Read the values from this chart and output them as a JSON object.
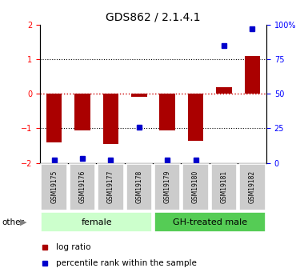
{
  "title": "GDS862 / 2.1.4.1",
  "samples": [
    "GSM19175",
    "GSM19176",
    "GSM19177",
    "GSM19178",
    "GSM19179",
    "GSM19180",
    "GSM19181",
    "GSM19182"
  ],
  "log_ratios": [
    -1.4,
    -1.05,
    -1.45,
    -0.08,
    -1.05,
    -1.35,
    0.2,
    1.1
  ],
  "percentile_ranks": [
    2,
    3,
    2,
    26,
    2,
    2,
    85,
    97
  ],
  "groups": [
    {
      "label": "female",
      "color": "#ccffcc",
      "start": 0,
      "end": 4
    },
    {
      "label": "GH-treated male",
      "color": "#55cc55",
      "start": 4,
      "end": 8
    }
  ],
  "ylim": [
    -2,
    2
  ],
  "y_ticks_left": [
    -2,
    -1,
    0,
    1,
    2
  ],
  "y_ticks_right": [
    0,
    25,
    50,
    75,
    100
  ],
  "bar_color": "#aa0000",
  "dot_color": "#0000cc",
  "zero_line_color": "#cc0000",
  "label_log_ratio": "log ratio",
  "label_percentile": "percentile rank within the sample",
  "other_label": "other",
  "title_fontsize": 10,
  "tick_fontsize": 7,
  "label_fontsize": 7.5,
  "sample_fontsize": 5.5,
  "group_fontsize": 8
}
